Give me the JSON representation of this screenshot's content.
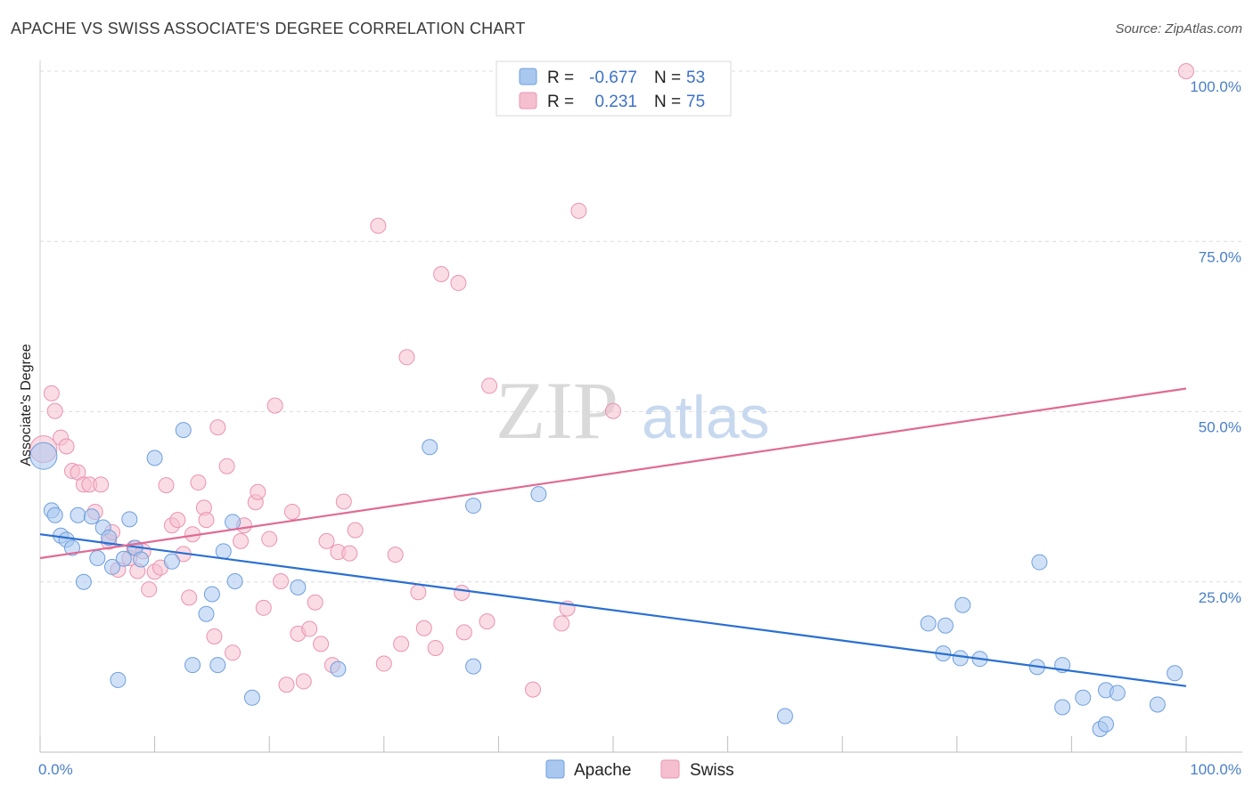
{
  "header": {
    "title": "APACHE VS SWISS ASSOCIATE'S DEGREE CORRELATION CHART",
    "source": "Source: ZipAtlas.com"
  },
  "watermark": {
    "zip": "ZIP",
    "atlas": "atlas"
  },
  "colors": {
    "apache_fill": "#a9c8f0",
    "apache_stroke": "#6f9fdc",
    "apache_line": "#2a6fd1",
    "swiss_fill": "#f6bfd0",
    "swiss_stroke": "#ea93b0",
    "swiss_line": "#e06a94",
    "tick": "#4a7fc7"
  },
  "legend": {
    "rows": [
      {
        "series": "Apache",
        "r_label": "R =",
        "r_value": "-0.677",
        "n_label": "N =",
        "n_value": "53"
      },
      {
        "series": "Swiss",
        "r_label": "R =",
        "r_value": "0.231",
        "n_label": "N =",
        "n_value": "75"
      }
    ]
  },
  "chart_data": {
    "type": "scatter",
    "title": "APACHE VS SWISS ASSOCIATE'S DEGREE CORRELATION CHART",
    "xlabel": "",
    "ylabel": "Associate's Degree",
    "xlim": [
      0,
      100
    ],
    "ylim": [
      0,
      100
    ],
    "x_ticks": [
      "0.0%",
      "100.0%"
    ],
    "y_ticks": [
      {
        "value": 25,
        "label": "25.0%"
      },
      {
        "value": 50,
        "label": "50.0%"
      },
      {
        "value": 75,
        "label": "75.0%"
      },
      {
        "value": 100,
        "label": "100.0%"
      }
    ],
    "grid": true,
    "legend_position": "top-center",
    "series": [
      {
        "name": "Apache",
        "r": -0.677,
        "n": 53,
        "trend": {
          "x": [
            0,
            100
          ],
          "y": [
            32.0,
            9.7
          ]
        },
        "points": [
          [
            0.3,
            43.5
          ],
          [
            1.0,
            35.5
          ],
          [
            1.3,
            34.8
          ],
          [
            1.8,
            31.8
          ],
          [
            2.3,
            31.2
          ],
          [
            2.8,
            30.0
          ],
          [
            3.8,
            25.0
          ],
          [
            3.3,
            34.8
          ],
          [
            4.5,
            34.6
          ],
          [
            5.0,
            28.5
          ],
          [
            5.5,
            33.0
          ],
          [
            6.0,
            31.5
          ],
          [
            6.3,
            27.2
          ],
          [
            7.3,
            28.4
          ],
          [
            7.8,
            34.2
          ],
          [
            8.3,
            30.0
          ],
          [
            8.8,
            28.3
          ],
          [
            10.0,
            43.2
          ],
          [
            11.5,
            28.0
          ],
          [
            12.5,
            47.3
          ],
          [
            14.5,
            20.3
          ],
          [
            15.0,
            23.2
          ],
          [
            16.0,
            29.5
          ],
          [
            16.8,
            33.8
          ],
          [
            17.0,
            25.1
          ],
          [
            18.5,
            8.0
          ],
          [
            22.5,
            24.2
          ],
          [
            26.0,
            12.2
          ],
          [
            34.0,
            44.8
          ],
          [
            37.8,
            36.2
          ],
          [
            37.8,
            12.6
          ],
          [
            43.5,
            37.9
          ],
          [
            6.8,
            10.6
          ],
          [
            13.3,
            12.8
          ],
          [
            15.5,
            12.8
          ],
          [
            65.0,
            5.3
          ],
          [
            77.5,
            18.9
          ],
          [
            79.0,
            18.6
          ],
          [
            80.5,
            21.6
          ],
          [
            78.8,
            14.5
          ],
          [
            80.3,
            13.8
          ],
          [
            82.0,
            13.7
          ],
          [
            87.0,
            12.5
          ],
          [
            87.2,
            27.9
          ],
          [
            89.2,
            6.6
          ],
          [
            89.2,
            12.8
          ],
          [
            91.0,
            8.0
          ],
          [
            92.5,
            3.4
          ],
          [
            93.0,
            4.1
          ],
          [
            93.0,
            9.1
          ],
          [
            94.0,
            8.7
          ],
          [
            97.5,
            7.0
          ],
          [
            99.0,
            11.6
          ]
        ]
      },
      {
        "name": "Swiss",
        "r": 0.231,
        "n": 75,
        "trend": {
          "x": [
            0,
            100
          ],
          "y": [
            28.5,
            53.4
          ]
        },
        "points": [
          [
            0.3,
            44.5
          ],
          [
            1.0,
            52.7
          ],
          [
            1.3,
            50.1
          ],
          [
            1.8,
            46.2
          ],
          [
            2.3,
            44.9
          ],
          [
            2.8,
            41.3
          ],
          [
            3.3,
            41.1
          ],
          [
            3.8,
            39.3
          ],
          [
            4.3,
            39.3
          ],
          [
            4.8,
            35.3
          ],
          [
            5.3,
            39.3
          ],
          [
            6.0,
            30.9
          ],
          [
            6.3,
            32.3
          ],
          [
            6.8,
            26.8
          ],
          [
            7.8,
            28.5
          ],
          [
            8.2,
            30.0
          ],
          [
            8.5,
            26.6
          ],
          [
            9.0,
            29.5
          ],
          [
            9.5,
            23.9
          ],
          [
            10.0,
            26.5
          ],
          [
            10.5,
            27.1
          ],
          [
            11.0,
            39.2
          ],
          [
            11.5,
            33.3
          ],
          [
            12.0,
            34.1
          ],
          [
            12.5,
            29.1
          ],
          [
            13.0,
            22.7
          ],
          [
            13.3,
            32.0
          ],
          [
            13.8,
            39.6
          ],
          [
            14.3,
            35.9
          ],
          [
            14.5,
            34.1
          ],
          [
            15.2,
            17.0
          ],
          [
            15.5,
            47.7
          ],
          [
            16.3,
            42.0
          ],
          [
            16.8,
            14.6
          ],
          [
            17.5,
            31.0
          ],
          [
            17.8,
            33.3
          ],
          [
            18.8,
            36.7
          ],
          [
            19.0,
            38.2
          ],
          [
            19.5,
            21.2
          ],
          [
            20.0,
            31.3
          ],
          [
            20.5,
            50.9
          ],
          [
            21.0,
            25.1
          ],
          [
            21.5,
            9.9
          ],
          [
            22.0,
            35.3
          ],
          [
            22.5,
            17.4
          ],
          [
            23.0,
            10.4
          ],
          [
            23.5,
            18.1
          ],
          [
            24.0,
            22.0
          ],
          [
            24.5,
            15.9
          ],
          [
            25.0,
            31.0
          ],
          [
            25.5,
            12.8
          ],
          [
            26.0,
            29.4
          ],
          [
            26.5,
            36.8
          ],
          [
            27.0,
            29.2
          ],
          [
            27.5,
            32.6
          ],
          [
            29.5,
            77.3
          ],
          [
            30.0,
            13.0
          ],
          [
            31.0,
            29.0
          ],
          [
            31.5,
            15.9
          ],
          [
            32.0,
            58.0
          ],
          [
            33.0,
            23.5
          ],
          [
            33.5,
            18.2
          ],
          [
            34.5,
            15.3
          ],
          [
            35.0,
            70.2
          ],
          [
            36.5,
            68.9
          ],
          [
            36.8,
            23.4
          ],
          [
            37.0,
            17.6
          ],
          [
            39.0,
            19.2
          ],
          [
            39.2,
            53.8
          ],
          [
            43.0,
            9.2
          ],
          [
            45.5,
            18.9
          ],
          [
            46.0,
            21.1
          ],
          [
            47.0,
            79.5
          ],
          [
            50.0,
            50.1
          ],
          [
            100.0,
            100.0
          ]
        ]
      }
    ]
  }
}
